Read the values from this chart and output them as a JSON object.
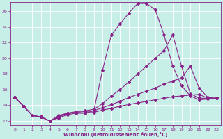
{
  "xlabel": "Windchill (Refroidissement éolien,°C)",
  "bg_color": "#c8eee8",
  "line_color": "#882288",
  "xlim": [
    -0.5,
    23.5
  ],
  "ylim": [
    11.5,
    27.2
  ],
  "xticks": [
    0,
    1,
    2,
    3,
    4,
    5,
    6,
    7,
    8,
    9,
    10,
    11,
    12,
    13,
    14,
    15,
    16,
    17,
    18,
    19,
    20,
    21,
    22,
    23
  ],
  "yticks": [
    12,
    14,
    16,
    18,
    20,
    22,
    24,
    26
  ],
  "line1_x": [
    0,
    1,
    2,
    3,
    4,
    5,
    6,
    7,
    8,
    9,
    10,
    11,
    12,
    13,
    14,
    15,
    16,
    17,
    18,
    19,
    20,
    21,
    22,
    23
  ],
  "line1_y": [
    15.0,
    13.9,
    12.7,
    12.5,
    12.0,
    12.7,
    13.0,
    13.0,
    13.0,
    13.3,
    18.5,
    23.0,
    24.4,
    25.8,
    27.0,
    27.0,
    26.2,
    23.0,
    19.0,
    16.5,
    15.2,
    14.7,
    14.8,
    14.9
  ],
  "line2_x": [
    0,
    1,
    2,
    3,
    4,
    5,
    6,
    7,
    8,
    9,
    10,
    11,
    12,
    13,
    14,
    15,
    16,
    17,
    18,
    19,
    20,
    21,
    22,
    23
  ],
  "line2_y": [
    15.0,
    13.9,
    12.7,
    12.5,
    12.0,
    12.5,
    13.0,
    13.2,
    13.3,
    13.5,
    14.2,
    15.2,
    16.0,
    17.0,
    18.0,
    19.0,
    20.0,
    21.0,
    23.0,
    19.0,
    15.5,
    14.9,
    14.9,
    14.9
  ],
  "line3_x": [
    0,
    1,
    2,
    3,
    4,
    5,
    6,
    7,
    8,
    9,
    10,
    11,
    12,
    13,
    14,
    15,
    16,
    17,
    18,
    19,
    20,
    21,
    22,
    23
  ],
  "line3_y": [
    15.0,
    13.9,
    12.7,
    12.5,
    12.0,
    12.5,
    13.0,
    13.1,
    13.2,
    13.3,
    13.7,
    14.1,
    14.5,
    15.0,
    15.4,
    15.8,
    16.2,
    16.7,
    17.1,
    17.5,
    19.0,
    16.2,
    15.0,
    14.9
  ],
  "line4_x": [
    0,
    1,
    2,
    3,
    4,
    5,
    6,
    7,
    8,
    9,
    10,
    11,
    12,
    13,
    14,
    15,
    16,
    17,
    18,
    19,
    20,
    21,
    22,
    23
  ],
  "line4_y": [
    15.0,
    13.9,
    12.7,
    12.5,
    12.0,
    12.4,
    12.8,
    13.0,
    13.0,
    13.1,
    13.4,
    13.6,
    13.9,
    14.1,
    14.3,
    14.5,
    14.7,
    14.9,
    15.1,
    15.2,
    15.3,
    15.4,
    14.9,
    14.9
  ]
}
